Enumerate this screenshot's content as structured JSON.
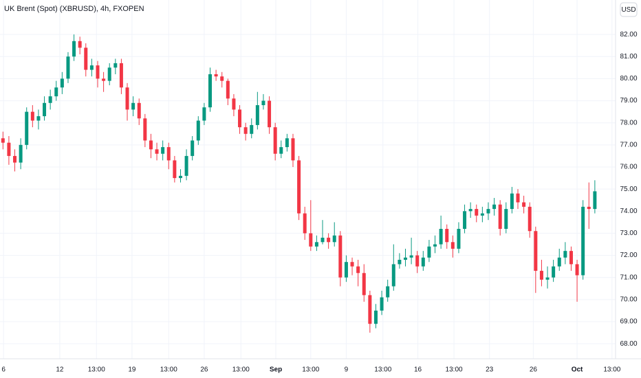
{
  "chart_data": {
    "type": "candlestick",
    "title": "UK Brent (Spot) (XBRUSD), 4h, FXOPEN",
    "currency": "USD",
    "up_color": "#089981",
    "down_color": "#f23645",
    "grid": true,
    "xlim": [
      -0.5,
      103.5
    ],
    "ylim": [
      67.32,
      83.56
    ],
    "yticks": [
      {
        "value": 68,
        "label": "68.00"
      },
      {
        "value": 69,
        "label": "69.00"
      },
      {
        "value": 70,
        "label": "70.00"
      },
      {
        "value": 71,
        "label": "71.00"
      },
      {
        "value": 72,
        "label": "72.00"
      },
      {
        "value": 73,
        "label": "73.00"
      },
      {
        "value": 74,
        "label": "74.00"
      },
      {
        "value": 75,
        "label": "75.00"
      },
      {
        "value": 76,
        "label": "76.00"
      },
      {
        "value": 77,
        "label": "77.00"
      },
      {
        "value": 78,
        "label": "78.00"
      },
      {
        "value": 79,
        "label": "79.00"
      },
      {
        "value": 80,
        "label": "80.00"
      },
      {
        "value": 81,
        "label": "81.00"
      },
      {
        "value": 82,
        "label": "82.00"
      }
    ],
    "xticks": [
      {
        "value": 0.1,
        "label": "6"
      },
      {
        "value": 9.6,
        "label": "12"
      },
      {
        "value": 15.8,
        "label": "13:00"
      },
      {
        "value": 21.8,
        "label": "19"
      },
      {
        "value": 28,
        "label": "13:00"
      },
      {
        "value": 34,
        "label": "26"
      },
      {
        "value": 40.2,
        "label": "13:00"
      },
      {
        "value": 46.1,
        "label": "Sep"
      },
      {
        "value": 52,
        "label": "13:00"
      },
      {
        "value": 58,
        "label": "9"
      },
      {
        "value": 64.2,
        "label": "13:00"
      },
      {
        "value": 70.1,
        "label": "16"
      },
      {
        "value": 76.2,
        "label": "13:00"
      },
      {
        "value": 82.2,
        "label": "23"
      },
      {
        "value": 89.6,
        "label": "26"
      },
      {
        "value": 97,
        "label": "Oct"
      },
      {
        "value": 102.9,
        "label": "13:00"
      }
    ],
    "open": [
      77.3,
      77.1,
      76.5,
      76.2,
      77.0,
      78.5,
      78.1,
      78.3,
      78.9,
      79.2,
      79.6,
      80.0,
      81.0,
      81.7,
      81.4,
      80.4,
      80.6,
      80.0,
      79.9,
      80.5,
      80.7,
      79.6,
      78.6,
      78.9,
      78.2,
      77.2,
      76.8,
      76.6,
      76.9,
      76.3,
      75.5,
      75.6,
      76.5,
      77.2,
      78.1,
      78.7,
      80.2,
      80.1,
      79.9,
      79.1,
      78.6,
      77.8,
      77.5,
      77.9,
      78.8,
      79.0,
      77.8,
      76.6,
      76.9,
      77.3,
      76.3,
      73.9,
      73.0,
      72.4,
      72.6,
      72.8,
      72.6,
      72.9,
      71.0,
      71.7,
      71.5,
      71.2,
      70.2,
      68.9,
      69.5,
      70.1,
      70.6,
      71.6,
      71.8,
      71.9,
      72.0,
      71.5,
      71.9,
      72.4,
      72.5,
      73.2,
      72.6,
      72.3,
      73.2,
      74.0,
      74.1,
      73.8,
      73.9,
      74.1,
      74.3,
      73.2,
      74.1,
      74.8,
      74.4,
      74.2,
      73.1,
      71.3,
      70.9,
      71.0,
      71.5,
      71.9,
      72.2,
      71.6,
      71.1,
      74.2,
      74.1
    ],
    "high": [
      77.6,
      77.4,
      76.8,
      77.3,
      78.7,
      78.8,
      78.6,
      79.2,
      79.5,
      79.9,
      80.3,
      81.2,
      82.0,
      81.9,
      81.6,
      80.9,
      80.8,
      80.3,
      80.7,
      80.9,
      80.9,
      79.8,
      79.2,
      79.1,
      78.4,
      77.5,
      77.1,
      77.2,
      77.1,
      76.5,
      75.9,
      76.8,
      77.4,
      78.3,
      78.9,
      80.5,
      80.4,
      80.3,
      80.0,
      79.3,
      78.8,
      78.0,
      78.2,
      79.4,
      79.3,
      79.2,
      78.0,
      77.2,
      77.5,
      77.5,
      76.5,
      74.2,
      74.5,
      72.9,
      73.6,
      73.0,
      73.5,
      73.1,
      72.0,
      71.9,
      71.8,
      71.6,
      70.4,
      69.8,
      70.4,
      70.9,
      72.5,
      72.1,
      72.3,
      72.8,
      72.2,
      72.2,
      72.7,
      72.9,
      73.8,
      73.4,
      72.9,
      73.5,
      74.3,
      74.4,
      74.3,
      74.2,
      74.4,
      74.6,
      74.5,
      74.4,
      75.1,
      75.0,
      74.7,
      74.4,
      73.3,
      71.8,
      71.5,
      71.8,
      72.3,
      72.6,
      72.4,
      71.8,
      74.5,
      75.3,
      75.4
    ],
    "low": [
      76.8,
      76.1,
      75.8,
      75.9,
      76.8,
      77.8,
      77.7,
      78.1,
      78.6,
      79.0,
      79.3,
      79.8,
      80.8,
      81.1,
      80.1,
      80.1,
      79.6,
      79.4,
      79.7,
      80.2,
      79.3,
      78.1,
      78.3,
      77.9,
      76.9,
      76.4,
      76.3,
      76.3,
      75.9,
      75.3,
      75.3,
      75.4,
      76.3,
      77.0,
      77.9,
      78.5,
      79.9,
      79.6,
      78.8,
      78.3,
      77.5,
      77.2,
      77.3,
      77.7,
      78.6,
      77.5,
      76.3,
      76.4,
      76.7,
      76.0,
      73.6,
      72.7,
      72.2,
      72.2,
      72.5,
      72.3,
      72.4,
      70.6,
      70.8,
      71.1,
      70.6,
      69.9,
      68.5,
      68.7,
      69.3,
      69.9,
      70.4,
      71.4,
      71.5,
      71.6,
      71.2,
      71.3,
      71.7,
      72.1,
      72.3,
      72.3,
      71.9,
      72.1,
      73.0,
      73.7,
      73.5,
      73.5,
      73.6,
      73.8,
      72.9,
      73.0,
      73.9,
      74.1,
      73.9,
      72.8,
      70.3,
      70.6,
      70.5,
      70.8,
      71.3,
      71.6,
      71.3,
      69.9,
      70.9,
      73.2,
      73.9
    ],
    "close": [
      77.1,
      76.5,
      76.2,
      77.0,
      78.5,
      78.1,
      78.3,
      78.9,
      79.2,
      79.6,
      80.0,
      81.0,
      81.7,
      81.4,
      80.4,
      80.6,
      80.0,
      79.9,
      80.5,
      80.7,
      79.6,
      78.6,
      78.9,
      78.2,
      77.2,
      76.8,
      76.6,
      76.9,
      76.3,
      75.5,
      75.6,
      76.5,
      77.2,
      78.1,
      78.7,
      80.2,
      80.1,
      79.9,
      79.1,
      78.6,
      77.8,
      77.5,
      77.9,
      78.8,
      79.0,
      77.8,
      76.6,
      76.9,
      77.3,
      76.3,
      73.9,
      73.0,
      72.4,
      72.6,
      72.8,
      72.6,
      72.9,
      71.0,
      71.7,
      71.5,
      71.2,
      70.2,
      68.9,
      69.5,
      70.1,
      70.6,
      71.6,
      71.8,
      71.9,
      72.0,
      71.5,
      71.9,
      72.4,
      72.5,
      73.2,
      72.6,
      72.3,
      73.2,
      74.0,
      74.1,
      73.8,
      73.9,
      74.1,
      74.3,
      73.2,
      74.1,
      74.8,
      74.4,
      74.2,
      73.1,
      71.3,
      70.9,
      71.0,
      71.5,
      71.9,
      72.2,
      71.6,
      71.1,
      74.2,
      74.1,
      74.9
    ]
  }
}
